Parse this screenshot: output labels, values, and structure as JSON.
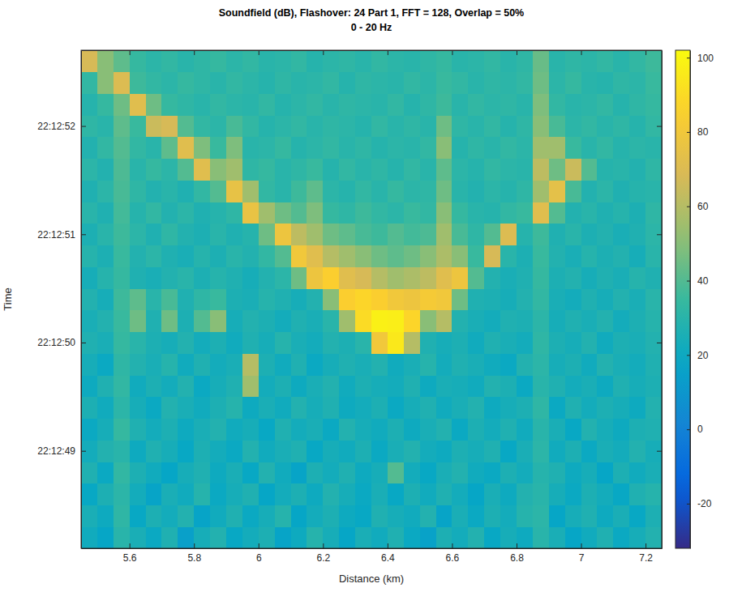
{
  "chart_data": {
    "type": "heatmap",
    "title": "Soundfield (dB), Flashover: 24 Part 1, FFT = 128, Overlap = 50%",
    "subtitle": "0 - 20 Hz",
    "x_label": "Distance (km)",
    "y_label": "Time",
    "x": [
      5.475,
      5.525,
      5.575,
      5.625,
      5.675,
      5.725,
      5.775,
      5.825,
      5.875,
      5.925,
      5.975,
      6.025,
      6.075,
      6.125,
      6.175,
      6.225,
      6.275,
      6.325,
      6.375,
      6.425,
      6.475,
      6.525,
      6.575,
      6.625,
      6.675,
      6.725,
      6.775,
      6.825,
      6.875,
      6.925,
      6.975,
      7.025,
      7.075,
      7.125,
      7.175,
      7.225
    ],
    "y": [
      48.2,
      48.4,
      48.6,
      48.8,
      49.0,
      49.2,
      49.4,
      49.6,
      49.8,
      50.0,
      50.2,
      50.4,
      50.6,
      50.8,
      51.0,
      51.2,
      51.4,
      51.6,
      51.8,
      52.0,
      52.2,
      52.4,
      52.6
    ],
    "values": [
      [
        22,
        18,
        30,
        25,
        20,
        27,
        15,
        24,
        28,
        19,
        23,
        26,
        17,
        21,
        29,
        24,
        18,
        25,
        22,
        27,
        20,
        16,
        26,
        23,
        28,
        19,
        24,
        21,
        30,
        25,
        18,
        22,
        27,
        20,
        24,
        28
      ],
      [
        25,
        21,
        32,
        19,
        26,
        23,
        28,
        17,
        22,
        27,
        20,
        24,
        29,
        18,
        23,
        26,
        21,
        19,
        27,
        24,
        22,
        28,
        17,
        25,
        20,
        26,
        23,
        29,
        31,
        18,
        24,
        27,
        21,
        25,
        19,
        26
      ],
      [
        19,
        26,
        31,
        23,
        17,
        25,
        22,
        29,
        20,
        24,
        27,
        18,
        23,
        26,
        21,
        28,
        24,
        20,
        25,
        19,
        26,
        22,
        27,
        23,
        18,
        25,
        21,
        28,
        30,
        24,
        20,
        26,
        23,
        19,
        27,
        29
      ],
      [
        27,
        20,
        33,
        26,
        22,
        18,
        24,
        27,
        21,
        25,
        19,
        28,
        22,
        17,
        26,
        23,
        27,
        21,
        24,
        40,
        23,
        19,
        25,
        28,
        22,
        20,
        26,
        23,
        29,
        27,
        21,
        24,
        18,
        26,
        22,
        25
      ],
      [
        23,
        28,
        30,
        21,
        27,
        24,
        19,
        26,
        23,
        20,
        28,
        22,
        25,
        27,
        19,
        24,
        22,
        26,
        20,
        25,
        28,
        23,
        21,
        26,
        24,
        27,
        19,
        25,
        31,
        22,
        26,
        20,
        25,
        23,
        28,
        24
      ],
      [
        20,
        24,
        34,
        27,
        23,
        26,
        21,
        25,
        28,
        22,
        24,
        19,
        27,
        23,
        25,
        20,
        28,
        24,
        22,
        26,
        21,
        25,
        28,
        20,
        26,
        23,
        27,
        22,
        30,
        25,
        19,
        28,
        24,
        21,
        26,
        27
      ],
      [
        26,
        22,
        31,
        24,
        20,
        28,
        25,
        22,
        26,
        29,
        21,
        25,
        22,
        28,
        24,
        27,
        21,
        23,
        26,
        20,
        24,
        27,
        22,
        25,
        28,
        21,
        24,
        26,
        32,
        20,
        27,
        23,
        26,
        24,
        21,
        28
      ],
      [
        21,
        27,
        33,
        22,
        26,
        23,
        28,
        20,
        24,
        27,
        55,
        23,
        26,
        21,
        25,
        28,
        22,
        26,
        24,
        23,
        27,
        21,
        25,
        24,
        22,
        28,
        26,
        20,
        30,
        27,
        23,
        25,
        21,
        27,
        24,
        26
      ],
      [
        24,
        20,
        32,
        28,
        25,
        29,
        22,
        27,
        23,
        25,
        60,
        26,
        22,
        27,
        20,
        24,
        27,
        25,
        28,
        22,
        25,
        29,
        23,
        27,
        25,
        22,
        20,
        28,
        31,
        24,
        26,
        22,
        28,
        25,
        23,
        27
      ],
      [
        27,
        25,
        34,
        30,
        26,
        24,
        28,
        23,
        26,
        22,
        27,
        24,
        29,
        25,
        23,
        28,
        26,
        30,
        80,
        95,
        60,
        27,
        24,
        26,
        22,
        27,
        25,
        23,
        32,
        26,
        24,
        28,
        22,
        26,
        25,
        28
      ],
      [
        25,
        28,
        35,
        45,
        27,
        45,
        26,
        40,
        50,
        24,
        28,
        26,
        23,
        27,
        25,
        30,
        55,
        90,
        98,
        97,
        88,
        50,
        60,
        28,
        25,
        23,
        27,
        26,
        31,
        24,
        27,
        25,
        28,
        23,
        26,
        29
      ],
      [
        28,
        24,
        36,
        42,
        30,
        38,
        27,
        32,
        35,
        26,
        25,
        29,
        27,
        24,
        28,
        50,
        85,
        88,
        85,
        80,
        78,
        82,
        80,
        45,
        27,
        26,
        24,
        28,
        33,
        25,
        23,
        27,
        24,
        28,
        25,
        30
      ],
      [
        24,
        29,
        34,
        27,
        25,
        28,
        30,
        26,
        29,
        27,
        24,
        28,
        31,
        45,
        78,
        85,
        72,
        68,
        60,
        55,
        58,
        62,
        72,
        78,
        40,
        28,
        25,
        27,
        34,
        26,
        28,
        24,
        27,
        25,
        29,
        27
      ],
      [
        29,
        26,
        35,
        28,
        31,
        27,
        25,
        29,
        26,
        30,
        28,
        33,
        40,
        80,
        72,
        60,
        55,
        50,
        45,
        42,
        45,
        50,
        58,
        50,
        35,
        68,
        30,
        26,
        35,
        28,
        25,
        29,
        26,
        28,
        24,
        30
      ],
      [
        26,
        30,
        36,
        31,
        27,
        32,
        28,
        26,
        30,
        27,
        29,
        45,
        78,
        62,
        55,
        45,
        42,
        38,
        36,
        40,
        37,
        39,
        55,
        38,
        32,
        40,
        70,
        29,
        36,
        27,
        30,
        26,
        28,
        25,
        27,
        31
      ],
      [
        30,
        27,
        37,
        29,
        33,
        28,
        31,
        27,
        29,
        32,
        76,
        55,
        45,
        40,
        48,
        34,
        32,
        36,
        33,
        31,
        35,
        33,
        50,
        34,
        30,
        29,
        33,
        35,
        72,
        40,
        28,
        30,
        27,
        29,
        26,
        32
      ],
      [
        27,
        31,
        38,
        32,
        28,
        30,
        27,
        33,
        40,
        75,
        55,
        33,
        30,
        36,
        42,
        31,
        29,
        33,
        30,
        34,
        31,
        32,
        45,
        30,
        28,
        31,
        29,
        32,
        55,
        74,
        38,
        28,
        31,
        27,
        29,
        30
      ],
      [
        31,
        28,
        39,
        30,
        34,
        31,
        40,
        72,
        50,
        55,
        32,
        34,
        30,
        32,
        35,
        29,
        33,
        30,
        32,
        29,
        33,
        30,
        42,
        31,
        29,
        33,
        31,
        30,
        62,
        45,
        65,
        40,
        29,
        30,
        28,
        32
      ],
      [
        28,
        33,
        40,
        33,
        30,
        42,
        72,
        48,
        35,
        48,
        30,
        31,
        34,
        29,
        31,
        33,
        30,
        32,
        29,
        31,
        30,
        33,
        50,
        29,
        32,
        30,
        33,
        31,
        55,
        55,
        35,
        30,
        33,
        29,
        31,
        30
      ],
      [
        32,
        30,
        42,
        35,
        65,
        68,
        40,
        33,
        31,
        38,
        33,
        29,
        31,
        33,
        30,
        32,
        31,
        29,
        33,
        30,
        32,
        30,
        45,
        32,
        30,
        33,
        29,
        32,
        50,
        38,
        31,
        33,
        30,
        32,
        29,
        33
      ],
      [
        29,
        34,
        45,
        72,
        45,
        34,
        32,
        30,
        33,
        31,
        30,
        33,
        29,
        31,
        33,
        30,
        32,
        31,
        30,
        33,
        29,
        32,
        36,
        30,
        33,
        31,
        32,
        30,
        48,
        33,
        30,
        31,
        33,
        29,
        32,
        34
      ],
      [
        33,
        50,
        70,
        36,
        33,
        31,
        34,
        32,
        30,
        33,
        31,
        29,
        32,
        30,
        31,
        33,
        29,
        32,
        31,
        30,
        33,
        31,
        35,
        33,
        30,
        32,
        31,
        33,
        45,
        31,
        34,
        30,
        29,
        32,
        31,
        35
      ],
      [
        68,
        50,
        42,
        34,
        31,
        33,
        30,
        32,
        34,
        31,
        33,
        30,
        31,
        33,
        29,
        31,
        32,
        30,
        33,
        31,
        30,
        32,
        34,
        30,
        31,
        33,
        30,
        32,
        44,
        30,
        32,
        31,
        33,
        30,
        33,
        36
      ]
    ],
    "xlim": [
      5.45,
      7.25
    ],
    "ylim": [
      48.1,
      52.7
    ],
    "xticks": [
      5.6,
      5.8,
      6,
      6.2,
      6.4,
      6.6,
      6.8,
      7,
      7.2
    ],
    "yticks": [
      {
        "value": 49,
        "label": "22:12:49"
      },
      {
        "value": 50,
        "label": "22:12:50"
      },
      {
        "value": 51,
        "label": "22:12:51"
      },
      {
        "value": 52,
        "label": "22:12:52"
      }
    ],
    "colorbar": {
      "range": [
        -32,
        102
      ],
      "ticks": [
        -20,
        0,
        20,
        40,
        60,
        80,
        100
      ]
    }
  }
}
